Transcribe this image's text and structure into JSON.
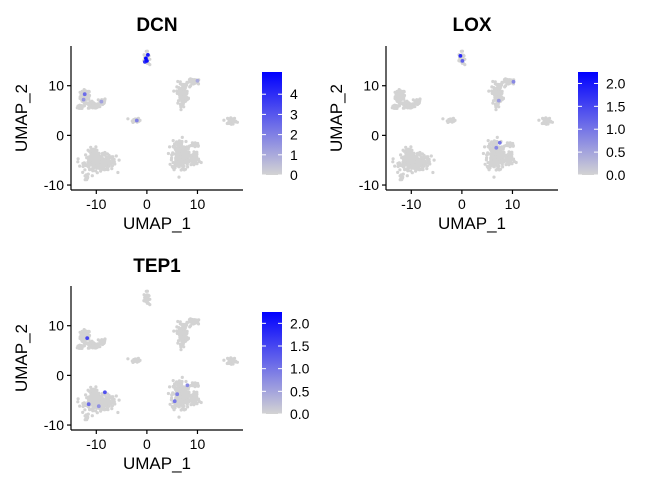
{
  "chart_data": [
    {
      "type": "scatter",
      "title": "DCN",
      "xlabel": "UMAP_1",
      "ylabel": "UMAP_2",
      "xlim": [
        -15,
        19
      ],
      "ylim": [
        -11,
        18
      ],
      "xticks": [
        "-10",
        "0",
        "10"
      ],
      "yticks": [
        "-10",
        "0",
        "10"
      ],
      "grid": false,
      "color_low": "#d3d3d3",
      "color_high": "#0000ff",
      "legend": {
        "placement": "right",
        "range": [
          0,
          5.1
        ],
        "ticks": [
          "0",
          "1",
          "2",
          "3",
          "4"
        ]
      },
      "highlight_points": [
        {
          "x": -0.2,
          "y": 15.5,
          "value": 5.0
        },
        {
          "x": 0.2,
          "y": 16.2,
          "value": 4.5
        },
        {
          "x": -0.4,
          "y": 14.8,
          "value": 4.0
        },
        {
          "x": 0.0,
          "y": 15.0,
          "value": 4.8
        },
        {
          "x": -12.3,
          "y": 8.3,
          "value": 2.5
        },
        {
          "x": -12.5,
          "y": 7.2,
          "value": 1.5
        },
        {
          "x": -9.0,
          "y": 6.8,
          "value": 1.2
        },
        {
          "x": -2.0,
          "y": 3.0,
          "value": 2.0
        },
        {
          "x": 10.0,
          "y": 11.0,
          "value": 1.0
        }
      ]
    },
    {
      "type": "scatter",
      "title": "LOX",
      "xlabel": "UMAP_1",
      "ylabel": "UMAP_2",
      "xlim": [
        -15,
        19
      ],
      "ylim": [
        -11,
        18
      ],
      "xticks": [
        "-10",
        "0",
        "10"
      ],
      "yticks": [
        "-10",
        "0",
        "10"
      ],
      "grid": false,
      "color_low": "#d3d3d3",
      "color_high": "#0000ff",
      "legend": {
        "placement": "right",
        "range": [
          0,
          2.25
        ],
        "ticks": [
          "0.0",
          "0.5",
          "1.0",
          "1.5",
          "2.0"
        ]
      },
      "highlight_points": [
        {
          "x": -0.3,
          "y": 16.0,
          "value": 1.8
        },
        {
          "x": 0.1,
          "y": 15.0,
          "value": 1.2
        },
        {
          "x": 7.5,
          "y": -1.5,
          "value": 1.0
        },
        {
          "x": 6.8,
          "y": -2.5,
          "value": 0.8
        },
        {
          "x": 10.2,
          "y": 10.8,
          "value": 0.8
        },
        {
          "x": 7.3,
          "y": 7.0,
          "value": 0.6
        }
      ]
    },
    {
      "type": "scatter",
      "title": "TEP1",
      "xlabel": "UMAP_1",
      "ylabel": "UMAP_2",
      "xlim": [
        -15,
        19
      ],
      "ylim": [
        -11,
        18
      ],
      "xticks": [
        "-10",
        "0",
        "10"
      ],
      "yticks": [
        "-10",
        "0",
        "10"
      ],
      "grid": false,
      "color_low": "#d3d3d3",
      "color_high": "#0000ff",
      "legend": {
        "placement": "right",
        "range": [
          0,
          2.25
        ],
        "ticks": [
          "0.0",
          "0.5",
          "1.0",
          "1.5",
          "2.0"
        ]
      },
      "highlight_points": [
        {
          "x": -11.8,
          "y": 7.5,
          "value": 1.5
        },
        {
          "x": -8.3,
          "y": -3.4,
          "value": 1.4
        },
        {
          "x": -11.5,
          "y": -5.8,
          "value": 1.1
        },
        {
          "x": 5.5,
          "y": -5.2,
          "value": 1.0
        },
        {
          "x": 6.0,
          "y": -3.8,
          "value": 0.9
        },
        {
          "x": 8.0,
          "y": -2.0,
          "value": 0.8
        },
        {
          "x": -9.5,
          "y": -6.2,
          "value": 0.7
        }
      ]
    }
  ],
  "clusters": [
    {
      "x": -12.2,
      "y": 7.8,
      "sx": 0.7,
      "sy": 1.0,
      "n": 70
    },
    {
      "x": -10.5,
      "y": 6.0,
      "sx": 0.8,
      "sy": 0.5,
      "n": 50
    },
    {
      "x": -8.8,
      "y": 6.8,
      "sx": 0.5,
      "sy": 0.5,
      "n": 25
    },
    {
      "x": -13.0,
      "y": 5.8,
      "sx": 0.5,
      "sy": 0.4,
      "n": 20
    },
    {
      "x": -2.3,
      "y": 3.1,
      "sx": 0.6,
      "sy": 0.3,
      "n": 25
    },
    {
      "x": -0.1,
      "y": 15.5,
      "sx": 0.35,
      "sy": 0.9,
      "n": 40
    },
    {
      "x": -9.2,
      "y": -5.5,
      "sx": 2.2,
      "sy": 1.1,
      "n": 260
    },
    {
      "x": -10.5,
      "y": -4.0,
      "sx": 1.0,
      "sy": 1.0,
      "n": 80
    },
    {
      "x": -12.0,
      "y": -8.5,
      "sx": 0.3,
      "sy": 0.5,
      "n": 15
    },
    {
      "x": 6.5,
      "y": -4.0,
      "sx": 1.1,
      "sy": 2.2,
      "n": 220
    },
    {
      "x": 8.5,
      "y": -4.8,
      "sx": 1.4,
      "sy": 1.0,
      "n": 90
    },
    {
      "x": 9.5,
      "y": -1.8,
      "sx": 0.7,
      "sy": 0.4,
      "n": 25
    },
    {
      "x": 7.0,
      "y": 8.5,
      "sx": 0.8,
      "sy": 1.5,
      "n": 110
    },
    {
      "x": 9.5,
      "y": 10.8,
      "sx": 0.9,
      "sy": 0.4,
      "n": 40
    },
    {
      "x": 16.8,
      "y": 3.0,
      "sx": 0.6,
      "sy": 0.5,
      "n": 30
    }
  ]
}
